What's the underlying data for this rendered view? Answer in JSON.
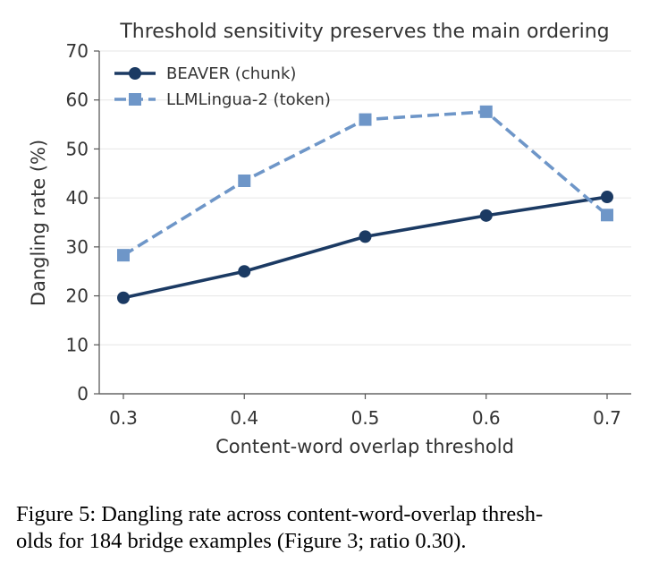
{
  "chart_data": {
    "type": "line",
    "title": "Threshold sensitivity preserves the main ordering",
    "xlabel": "Content-word overlap threshold",
    "ylabel": "Dangling rate (%)",
    "x": [
      0.3,
      0.4,
      0.5,
      0.6,
      0.7
    ],
    "x_tick_labels": [
      "0.3",
      "0.4",
      "0.5",
      "0.6",
      "0.7"
    ],
    "y_ticks": [
      0,
      10,
      20,
      30,
      40,
      50,
      60,
      70
    ],
    "ylim": [
      0,
      70
    ],
    "grid": "horizontal",
    "legend_position": "top-left",
    "series": [
      {
        "name": "BEAVER (chunk)",
        "values": [
          19.6,
          25.0,
          32.1,
          36.4,
          40.2
        ],
        "color": "#1b3a63",
        "marker": "circle",
        "dash": "solid"
      },
      {
        "name": "LLMLingua-2 (token)",
        "values": [
          28.3,
          43.5,
          56.0,
          57.6,
          36.5
        ],
        "color": "#6e96c8",
        "marker": "square",
        "dash": "dashed"
      }
    ]
  },
  "caption": {
    "line1": "Figure 5: Dangling rate across content-word-overlap thresh-",
    "line2": "olds for 184 bridge examples (Figure 3; ratio 0.30)."
  }
}
